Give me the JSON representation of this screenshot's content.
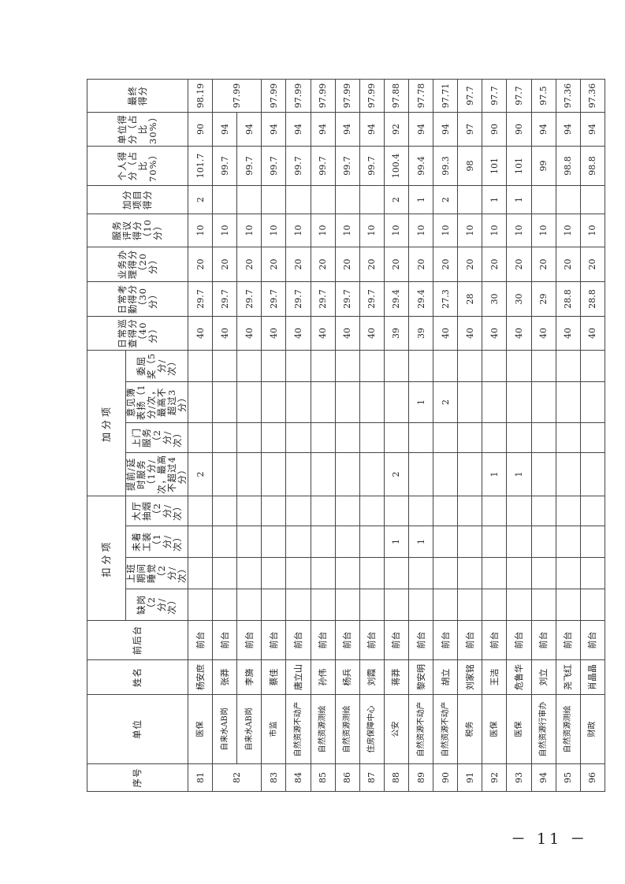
{
  "headers": {
    "seq": "序号",
    "unit": "单位",
    "name": "姓名",
    "desk": "前后台",
    "deduct_group": "扣分项",
    "deduct": [
      "缺岗（2分/次）",
      "上班期间睡觉（2分/次）",
      "未着工装（1分/次）",
      "大厅抽烟（2分/次）"
    ],
    "bonus_group": "加分项",
    "bonus": [
      "提前/延时服务（1分/次，最高不超过4分）",
      "上门服务（2分/次）",
      "意见簿表扬（1分/次，最高不超过3分）",
      "委屈奖（5分/次）"
    ],
    "patrol": "日常巡查得分（40分）",
    "attendance": "日常考勤得分（30分）",
    "business": "业务办理得分（20分）",
    "review": "服务评议得分（10分）",
    "bonus_score": "加分项目得分",
    "personal": "个人得分（占比70%）",
    "unit_score": "单位得分（占比30%）",
    "final": "最终得分"
  },
  "rows": [
    {
      "seq": "81",
      "unit": "医保",
      "name": "杨安庶",
      "desk": "前台",
      "d": [
        "",
        "",
        "",
        ""
      ],
      "b": [
        "2",
        "",
        "",
        ""
      ],
      "patrol": "40",
      "att": "29.7",
      "biz": "20",
      "rev": "10",
      "bonus": "2",
      "personal": "101.7",
      "unit_score": "90",
      "final": "98.19"
    },
    {
      "seq": "82",
      "seq_span": 2,
      "unit": "自来水AB岗",
      "name": "张莽",
      "desk": "前台",
      "d": [
        "",
        "",
        "",
        ""
      ],
      "b": [
        "",
        "",
        "",
        ""
      ],
      "patrol": "40",
      "att": "29.7",
      "biz": "20",
      "rev": "10",
      "bonus": "",
      "personal": "99.7",
      "unit_score": "94",
      "final": "97.99",
      "final_span": 2
    },
    {
      "seq": null,
      "unit": "自来水AB岗",
      "name": "李旖",
      "desk": "前台",
      "d": [
        "",
        "",
        "",
        ""
      ],
      "b": [
        "",
        "",
        "",
        ""
      ],
      "patrol": "40",
      "att": "29.7",
      "biz": "20",
      "rev": "10",
      "bonus": "",
      "personal": "99.7",
      "unit_score": "94",
      "final": null
    },
    {
      "seq": "83",
      "unit": "市监",
      "name": "蔡佳",
      "desk": "前台",
      "d": [
        "",
        "",
        "",
        ""
      ],
      "b": [
        "",
        "",
        "",
        ""
      ],
      "patrol": "40",
      "att": "29.7",
      "biz": "20",
      "rev": "10",
      "bonus": "",
      "personal": "99.7",
      "unit_score": "94",
      "final": "97.99"
    },
    {
      "seq": "84",
      "unit": "自然资源不动产",
      "name": "唐立山",
      "desk": "前台",
      "d": [
        "",
        "",
        "",
        ""
      ],
      "b": [
        "",
        "",
        "",
        ""
      ],
      "patrol": "40",
      "att": "29.7",
      "biz": "20",
      "rev": "10",
      "bonus": "",
      "personal": "99.7",
      "unit_score": "94",
      "final": "97.99"
    },
    {
      "seq": "85",
      "unit": "自然资源测绘",
      "name": "孙伟",
      "desk": "前台",
      "d": [
        "",
        "",
        "",
        ""
      ],
      "b": [
        "",
        "",
        "",
        ""
      ],
      "patrol": "40",
      "att": "29.7",
      "biz": "20",
      "rev": "10",
      "bonus": "",
      "personal": "99.7",
      "unit_score": "94",
      "final": "97.99"
    },
    {
      "seq": "86",
      "unit": "自然资源测绘",
      "name": "杨兵",
      "desk": "前台",
      "d": [
        "",
        "",
        "",
        ""
      ],
      "b": [
        "",
        "",
        "",
        ""
      ],
      "patrol": "40",
      "att": "29.7",
      "biz": "20",
      "rev": "10",
      "bonus": "",
      "personal": "99.7",
      "unit_score": "94",
      "final": "97.99"
    },
    {
      "seq": "87",
      "unit": "住房保障中心",
      "name": "刘霞",
      "desk": "前台",
      "d": [
        "",
        "",
        "",
        ""
      ],
      "b": [
        "",
        "",
        "",
        ""
      ],
      "patrol": "40",
      "att": "29.7",
      "biz": "20",
      "rev": "10",
      "bonus": "",
      "personal": "99.7",
      "unit_score": "94",
      "final": "97.99"
    },
    {
      "seq": "88",
      "unit": "公安",
      "name": "蒋莽",
      "desk": "前台",
      "d": [
        "",
        "",
        "1",
        ""
      ],
      "b": [
        "2",
        "",
        "",
        ""
      ],
      "patrol": "39",
      "att": "29.4",
      "biz": "20",
      "rev": "10",
      "bonus": "2",
      "personal": "100.4",
      "unit_score": "92",
      "final": "97.88"
    },
    {
      "seq": "89",
      "unit": "自然资源不动产",
      "name": "黎安明",
      "desk": "前台",
      "d": [
        "",
        "",
        "1",
        ""
      ],
      "b": [
        "",
        "",
        "1",
        ""
      ],
      "patrol": "39",
      "att": "29.4",
      "biz": "20",
      "rev": "10",
      "bonus": "1",
      "personal": "99.4",
      "unit_score": "94",
      "final": "97.78"
    },
    {
      "seq": "90",
      "unit": "自然资源不动产",
      "name": "胡立",
      "desk": "前台",
      "d": [
        "",
        "",
        "",
        ""
      ],
      "b": [
        "",
        "",
        "2",
        ""
      ],
      "patrol": "40",
      "att": "27.3",
      "biz": "20",
      "rev": "10",
      "bonus": "2",
      "personal": "99.3",
      "unit_score": "94",
      "final": "97.71"
    },
    {
      "seq": "91",
      "unit": "税务",
      "name": "刘家铭",
      "desk": "前台",
      "d": [
        "",
        "",
        "",
        ""
      ],
      "b": [
        "",
        "",
        "",
        ""
      ],
      "patrol": "40",
      "att": "28",
      "biz": "20",
      "rev": "10",
      "bonus": "",
      "personal": "98",
      "unit_score": "97",
      "final": "97.7"
    },
    {
      "seq": "92",
      "unit": "医保",
      "name": "王洁",
      "desk": "前台",
      "d": [
        "",
        "",
        "",
        ""
      ],
      "b": [
        "1",
        "",
        "",
        ""
      ],
      "patrol": "40",
      "att": "30",
      "biz": "20",
      "rev": "10",
      "bonus": "1",
      "personal": "101",
      "unit_score": "90",
      "final": "97.7"
    },
    {
      "seq": "93",
      "unit": "医保",
      "name": "危鲁华",
      "desk": "前台",
      "d": [
        "",
        "",
        "",
        ""
      ],
      "b": [
        "1",
        "",
        "",
        ""
      ],
      "patrol": "40",
      "att": "30",
      "biz": "20",
      "rev": "10",
      "bonus": "1",
      "personal": "101",
      "unit_score": "90",
      "final": "97.7"
    },
    {
      "seq": "94",
      "unit": "自然资源行审办",
      "name": "刘立",
      "desk": "前台",
      "d": [
        "",
        "",
        "",
        ""
      ],
      "b": [
        "",
        "",
        "",
        ""
      ],
      "patrol": "40",
      "att": "29",
      "biz": "20",
      "rev": "10",
      "bonus": "",
      "personal": "99",
      "unit_score": "94",
      "final": "97.5"
    },
    {
      "seq": "95",
      "unit": "自然资源测绘",
      "name": "尧飞红",
      "desk": "前台",
      "d": [
        "",
        "",
        "",
        ""
      ],
      "b": [
        "",
        "",
        "",
        ""
      ],
      "patrol": "40",
      "att": "28.8",
      "biz": "20",
      "rev": "10",
      "bonus": "",
      "personal": "98.8",
      "unit_score": "94",
      "final": "97.36"
    },
    {
      "seq": "96",
      "unit": "财政",
      "name": "肖晶晶",
      "desk": "前台",
      "d": [
        "",
        "",
        "",
        ""
      ],
      "b": [
        "",
        "",
        "",
        ""
      ],
      "patrol": "40",
      "att": "28.8",
      "biz": "20",
      "rev": "10",
      "bonus": "",
      "personal": "98.8",
      "unit_score": "94",
      "final": "97.36"
    }
  ],
  "page_number": "－ 11 －"
}
